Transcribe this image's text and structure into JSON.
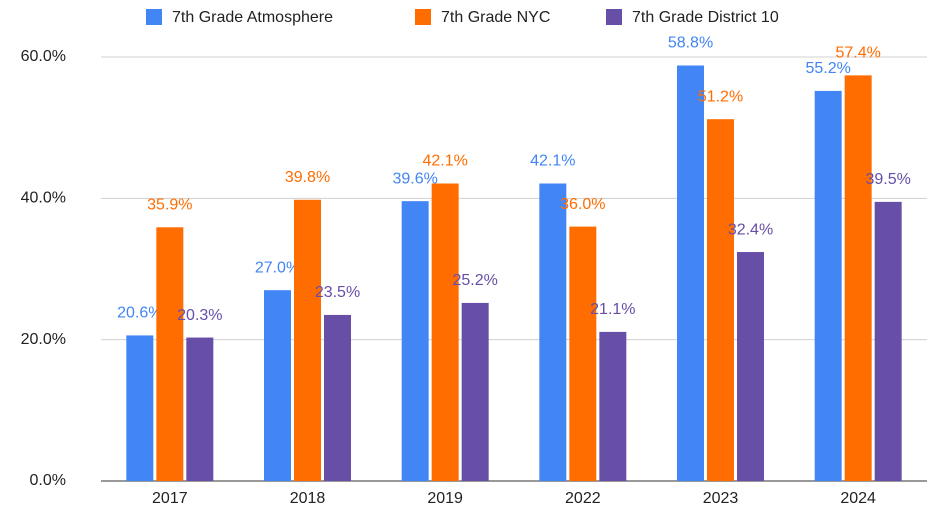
{
  "chart_data": {
    "type": "bar",
    "categories": [
      "2017",
      "2018",
      "2019",
      "2022",
      "2023",
      "2024"
    ],
    "series": [
      {
        "name": "7th Grade Atmosphere",
        "color": "#4285f4",
        "values": [
          20.6,
          27.0,
          39.6,
          42.1,
          58.8,
          55.2
        ],
        "value_labels": [
          "20.6%",
          "27.0%",
          "39.6%",
          "42.1%",
          "58.8%",
          "55.2%"
        ]
      },
      {
        "name": "7th Grade NYC",
        "color": "#ff6d01",
        "values": [
          35.9,
          39.8,
          42.1,
          36.0,
          51.2,
          57.4
        ],
        "value_labels": [
          "35.9%",
          "39.8%",
          "42.1%",
          "36.0%",
          "51.2%",
          "57.4%"
        ]
      },
      {
        "name": "7th Grade District 10",
        "color": "#674ea7",
        "values": [
          20.3,
          23.5,
          25.2,
          21.1,
          32.4,
          39.5
        ],
        "value_labels": [
          "20.3%",
          "23.5%",
          "25.2%",
          "21.1%",
          "32.4%",
          "39.5%"
        ]
      }
    ],
    "ylim": [
      0,
      60
    ],
    "yticks": [
      {
        "value": 0,
        "label": "0.0%"
      },
      {
        "value": 20,
        "label": "20.0%"
      },
      {
        "value": 40,
        "label": "40.0%"
      },
      {
        "value": 60,
        "label": "60.0%"
      }
    ],
    "grid": true,
    "legend": "top"
  }
}
